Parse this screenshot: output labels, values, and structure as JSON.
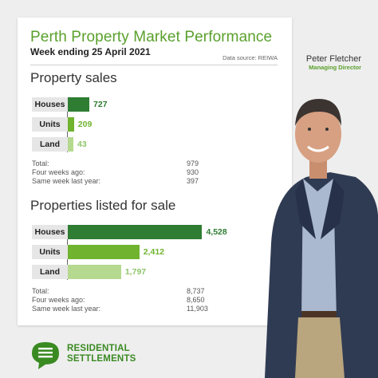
{
  "header": {
    "title": "Perth Property Market Performance",
    "subtitle": "Week ending 25 April 2021",
    "source": "Data source: REIWA"
  },
  "person": {
    "name": "Peter Fletcher",
    "role": "Managing Director"
  },
  "brand": {
    "line1": "RESIDENTIAL",
    "line2": "SETTLEMENTS"
  },
  "colors": {
    "dark_green": "#2e7d32",
    "mid_green": "#6fb32e",
    "light_green": "#b5d98f",
    "title_green": "#5aa02c"
  },
  "chart_data": [
    {
      "type": "bar",
      "title": "Property sales",
      "categories": [
        "Houses",
        "Units",
        "Land"
      ],
      "values": [
        727,
        209,
        43
      ],
      "value_labels": [
        "727",
        "209",
        "43"
      ],
      "xlim": [
        0,
        5000
      ],
      "stats": [
        {
          "label": "Total:",
          "value": "979"
        },
        {
          "label": "Four weeks ago:",
          "value": "930"
        },
        {
          "label": "Same week last year:",
          "value": "397"
        }
      ]
    },
    {
      "type": "bar",
      "title": "Properties listed for sale",
      "categories": [
        "Houses",
        "Units",
        "Land"
      ],
      "values": [
        4528,
        2412,
        1797
      ],
      "value_labels": [
        "4,528",
        "2,412",
        "1,797"
      ],
      "xlim": [
        0,
        5000
      ],
      "stats": [
        {
          "label": "Total:",
          "value": "8,737"
        },
        {
          "label": "Four weeks ago:",
          "value": "8,650"
        },
        {
          "label": "Same week last year:",
          "value": "11,903"
        }
      ]
    }
  ]
}
